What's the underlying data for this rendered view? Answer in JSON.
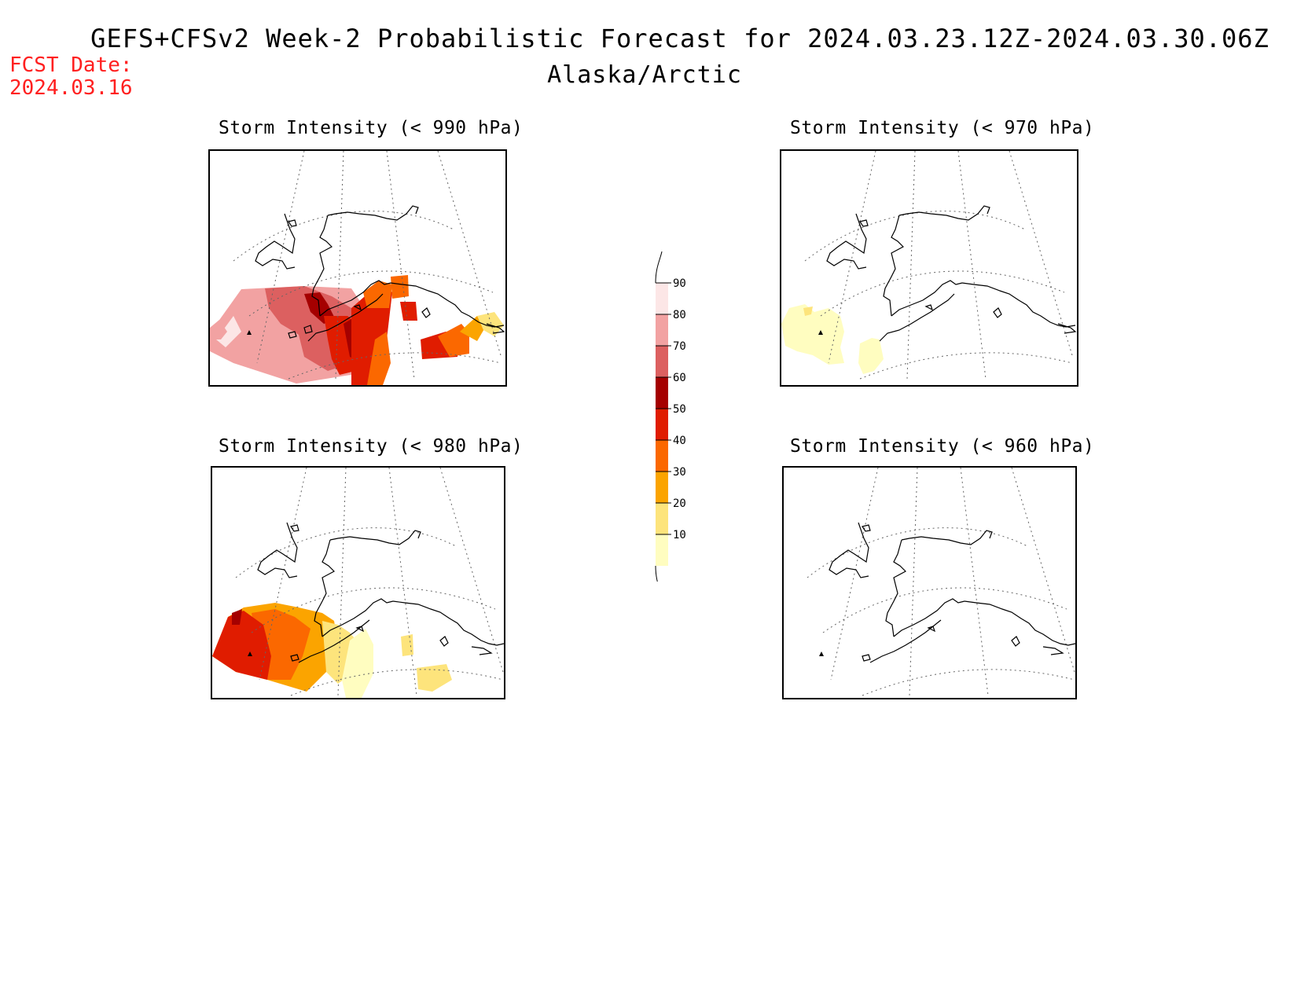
{
  "header": {
    "title": "GEFS+CFSv2 Week-2 Probabilistic Forecast for 2024.03.23.12Z-2024.03.30.06Z",
    "subtitle": "Alaska/Arctic",
    "fcst_label": "FCST Date:",
    "fcst_value": "2024.03.16"
  },
  "panels": [
    {
      "id": "p990",
      "title": "Storm Intensity (< 990 hPa)"
    },
    {
      "id": "p970",
      "title": "Storm Intensity (< 970 hPa)"
    },
    {
      "id": "p980",
      "title": "Storm Intensity (< 980 hPa)"
    },
    {
      "id": "p960",
      "title": "Storm Intensity (< 960 hPa)"
    }
  ],
  "colorbar": {
    "levels": [
      "10",
      "20",
      "30",
      "40",
      "50",
      "60",
      "70",
      "80",
      "90"
    ],
    "colors": [
      "#fffdc0",
      "#fde47c",
      "#fba400",
      "#fb6800",
      "#e01c00",
      "#a50000",
      "#dc6060",
      "#f2a2a2",
      "#fce6e6"
    ]
  }
}
